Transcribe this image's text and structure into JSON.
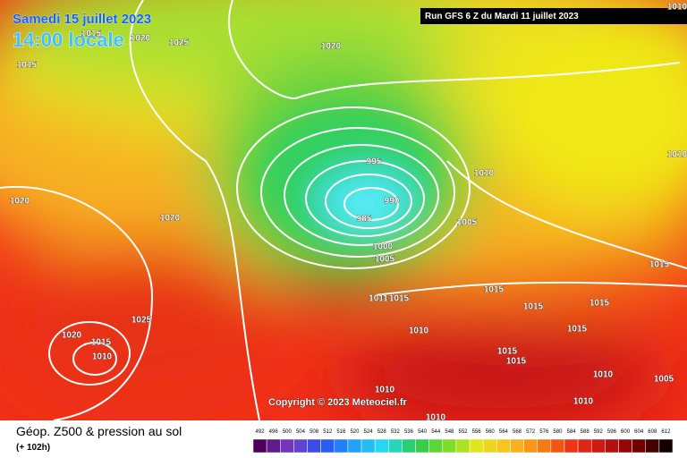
{
  "header": {
    "date": "Samedi 15 juillet 2023",
    "time": "14:00 locale",
    "run": "Run GFS 6 Z du Mardi 11 juillet 2023"
  },
  "copyright": "Copyright © 2023 Meteociel.fr",
  "footer": {
    "title": "Géop. Z500 & pression au sol",
    "lead": "(+ 102h)"
  },
  "legend": {
    "labels": [
      "492",
      "496",
      "500",
      "504",
      "508",
      "512",
      "516",
      "520",
      "524",
      "528",
      "532",
      "536",
      "540",
      "544",
      "548",
      "552",
      "556",
      "560",
      "564",
      "568",
      "572",
      "576",
      "580",
      "584",
      "588",
      "592",
      "596",
      "600",
      "604",
      "608",
      "612"
    ]
  },
  "isobars": {
    "labels": [
      "1015",
      "1020",
      "1025",
      "1020",
      "1015",
      "995",
      "990",
      "985",
      "1000",
      "1005",
      "1005",
      "1010",
      "1020",
      "1020",
      "1025",
      "1020",
      "1015",
      "1010",
      "1015",
      "1015",
      "1015",
      "1015",
      "1011",
      "1015",
      "1010",
      "1015",
      "1015",
      "1015",
      "1010",
      "1005",
      "1010",
      "1010",
      "1010",
      "1010",
      "1010"
    ]
  }
}
